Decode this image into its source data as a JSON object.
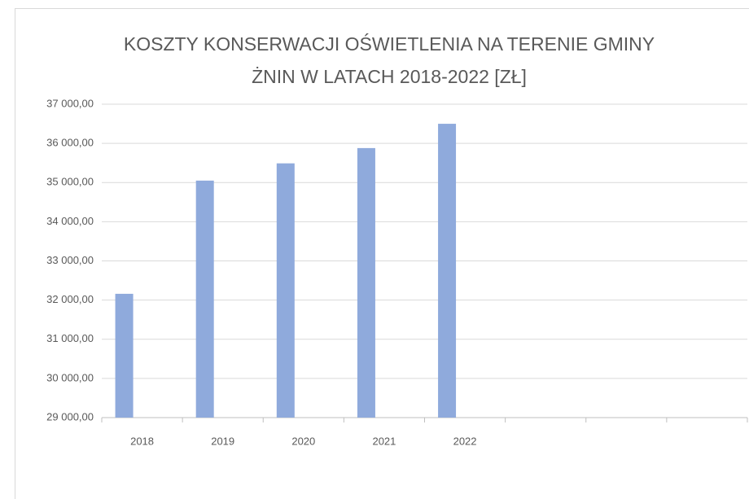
{
  "chart_data": {
    "type": "bar",
    "title": [
      "KOSZTY KONSERWACJI OŚWIETLENIA NA TERENIE GMINY",
      "ŻNIN W LATACH 2018-2022 [ZŁ]"
    ],
    "categories": [
      "2018",
      "2019",
      "2020",
      "2021",
      "2022",
      null,
      null,
      null
    ],
    "values": [
      32160,
      35050,
      35490,
      35880,
      36500,
      null,
      null,
      null
    ],
    "color": "#8faadc",
    "ylim": [
      29000,
      37000
    ],
    "yticks": [
      {
        "value": 29000,
        "label": "29 000,00"
      },
      {
        "value": 30000,
        "label": "30 000,00"
      },
      {
        "value": 31000,
        "label": "31 000,00"
      },
      {
        "value": 32000,
        "label": "32 000,00"
      },
      {
        "value": 33000,
        "label": "33 000,00"
      },
      {
        "value": 34000,
        "label": "34 000,00"
      },
      {
        "value": 35000,
        "label": "35 000,00"
      },
      {
        "value": 36000,
        "label": "36 000,00"
      },
      {
        "value": 37000,
        "label": "37 000,00"
      }
    ],
    "grid": true
  }
}
